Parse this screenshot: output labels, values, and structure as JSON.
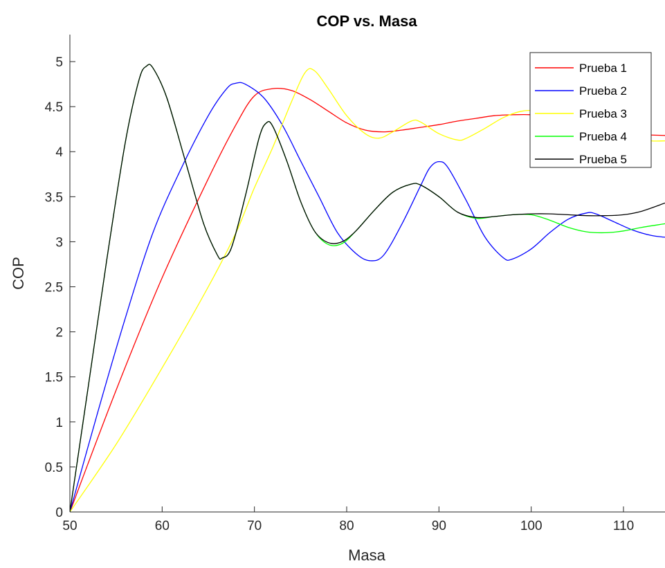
{
  "chart_data": {
    "type": "line",
    "title": "COP vs. Masa",
    "xlabel": "Masa",
    "ylabel": "COP",
    "xlim": [
      50,
      114.5
    ],
    "ylim": [
      0,
      5.3
    ],
    "xticks": [
      50,
      60,
      70,
      80,
      90,
      100,
      110
    ],
    "yticks": [
      0,
      0.5,
      1,
      1.5,
      2,
      2.5,
      3,
      3.5,
      4,
      4.5,
      5
    ],
    "xtick_labels": [
      "50",
      "60",
      "70",
      "80",
      "90",
      "100",
      "110"
    ],
    "ytick_labels": [
      "0",
      "0.5",
      "1",
      "1.5",
      "2",
      "2.5",
      "3",
      "3.5",
      "4",
      "4.5",
      "5"
    ],
    "grid": false,
    "legend_position": "top-right",
    "series": [
      {
        "name": "Prueba 1",
        "color": "#ff0000",
        "points": [
          [
            50,
            0
          ],
          [
            55,
            1.35
          ],
          [
            60,
            2.6
          ],
          [
            65,
            3.7
          ],
          [
            68,
            4.3
          ],
          [
            70,
            4.62
          ],
          [
            72,
            4.7
          ],
          [
            74,
            4.68
          ],
          [
            76,
            4.58
          ],
          [
            78,
            4.45
          ],
          [
            80,
            4.32
          ],
          [
            82,
            4.24
          ],
          [
            84,
            4.22
          ],
          [
            86,
            4.24
          ],
          [
            88,
            4.27
          ],
          [
            90,
            4.3
          ],
          [
            92,
            4.34
          ],
          [
            94,
            4.37
          ],
          [
            96,
            4.4
          ],
          [
            98,
            4.41
          ],
          [
            100,
            4.41
          ],
          [
            102,
            4.39
          ],
          [
            104,
            4.35
          ],
          [
            106,
            4.3
          ],
          [
            108,
            4.25
          ],
          [
            110,
            4.21
          ],
          [
            112,
            4.19
          ],
          [
            114.5,
            4.18
          ]
        ]
      },
      {
        "name": "Prueba 2",
        "color": "#0000ff",
        "points": [
          [
            50,
            0
          ],
          [
            53,
            1.1
          ],
          [
            56,
            2.15
          ],
          [
            59,
            3.1
          ],
          [
            62,
            3.8
          ],
          [
            65,
            4.4
          ],
          [
            67,
            4.7
          ],
          [
            68,
            4.76
          ],
          [
            69,
            4.75
          ],
          [
            71,
            4.6
          ],
          [
            73,
            4.3
          ],
          [
            75,
            3.9
          ],
          [
            77,
            3.5
          ],
          [
            79,
            3.1
          ],
          [
            81,
            2.87
          ],
          [
            82.5,
            2.79
          ],
          [
            84,
            2.85
          ],
          [
            86,
            3.2
          ],
          [
            88,
            3.62
          ],
          [
            89,
            3.82
          ],
          [
            90,
            3.89
          ],
          [
            91,
            3.82
          ],
          [
            93,
            3.45
          ],
          [
            95,
            3.05
          ],
          [
            97,
            2.82
          ],
          [
            98,
            2.81
          ],
          [
            100,
            2.92
          ],
          [
            102,
            3.1
          ],
          [
            104,
            3.25
          ],
          [
            106,
            3.32
          ],
          [
            107,
            3.31
          ],
          [
            109,
            3.22
          ],
          [
            111,
            3.13
          ],
          [
            113,
            3.07
          ],
          [
            114.5,
            3.05
          ]
        ]
      },
      {
        "name": "Prueba 3",
        "color": "#ffff00",
        "points": [
          [
            50,
            0
          ],
          [
            55,
            0.75
          ],
          [
            60,
            1.6
          ],
          [
            65,
            2.5
          ],
          [
            68,
            3.1
          ],
          [
            70,
            3.6
          ],
          [
            72,
            4.05
          ],
          [
            74,
            4.55
          ],
          [
            75.5,
            4.88
          ],
          [
            76.5,
            4.9
          ],
          [
            78,
            4.7
          ],
          [
            80,
            4.4
          ],
          [
            82,
            4.2
          ],
          [
            83.5,
            4.15
          ],
          [
            85,
            4.22
          ],
          [
            87,
            4.34
          ],
          [
            88,
            4.33
          ],
          [
            90,
            4.2
          ],
          [
            92,
            4.13
          ],
          [
            93,
            4.15
          ],
          [
            95,
            4.26
          ],
          [
            97,
            4.38
          ],
          [
            99,
            4.45
          ],
          [
            101,
            4.45
          ],
          [
            103,
            4.38
          ],
          [
            105,
            4.3
          ],
          [
            107,
            4.25
          ],
          [
            109,
            4.2
          ],
          [
            111,
            4.15
          ],
          [
            113,
            4.12
          ],
          [
            114.5,
            4.12
          ]
        ]
      },
      {
        "name": "Prueba 4",
        "color": "#00ff00",
        "points": [
          [
            50,
            0
          ],
          [
            52,
            1.4
          ],
          [
            54,
            2.8
          ],
          [
            56,
            4.1
          ],
          [
            57.5,
            4.8
          ],
          [
            58.3,
            4.95
          ],
          [
            59,
            4.93
          ],
          [
            60.5,
            4.6
          ],
          [
            62.5,
            3.9
          ],
          [
            64.5,
            3.2
          ],
          [
            66,
            2.85
          ],
          [
            66.5,
            2.82
          ],
          [
            67.5,
            2.93
          ],
          [
            69,
            3.5
          ],
          [
            70.5,
            4.15
          ],
          [
            71.3,
            4.32
          ],
          [
            72,
            4.28
          ],
          [
            73.5,
            3.9
          ],
          [
            75,
            3.45
          ],
          [
            76.5,
            3.12
          ],
          [
            78,
            2.97
          ],
          [
            79.5,
            2.98
          ],
          [
            81,
            3.12
          ],
          [
            83,
            3.35
          ],
          [
            85,
            3.55
          ],
          [
            87,
            3.64
          ],
          [
            88,
            3.63
          ],
          [
            90,
            3.5
          ],
          [
            92,
            3.33
          ],
          [
            94,
            3.26
          ],
          [
            96,
            3.28
          ],
          [
            98,
            3.3
          ],
          [
            100,
            3.3
          ],
          [
            102,
            3.24
          ],
          [
            104,
            3.16
          ],
          [
            106,
            3.11
          ],
          [
            108,
            3.1
          ],
          [
            110,
            3.12
          ],
          [
            112,
            3.16
          ],
          [
            114.5,
            3.2
          ]
        ]
      },
      {
        "name": "Prueba 5",
        "color": "#000000",
        "points": [
          [
            50,
            0
          ],
          [
            52,
            1.4
          ],
          [
            54,
            2.8
          ],
          [
            56,
            4.1
          ],
          [
            57.5,
            4.8
          ],
          [
            58.3,
            4.95
          ],
          [
            59,
            4.93
          ],
          [
            60.5,
            4.6
          ],
          [
            62.5,
            3.9
          ],
          [
            64.5,
            3.2
          ],
          [
            66,
            2.85
          ],
          [
            66.5,
            2.82
          ],
          [
            67.5,
            2.93
          ],
          [
            69,
            3.5
          ],
          [
            70.5,
            4.15
          ],
          [
            71.3,
            4.32
          ],
          [
            72,
            4.28
          ],
          [
            73.5,
            3.9
          ],
          [
            75,
            3.45
          ],
          [
            76.5,
            3.12
          ],
          [
            78,
            2.99
          ],
          [
            79.5,
            3.0
          ],
          [
            81,
            3.12
          ],
          [
            83,
            3.35
          ],
          [
            85,
            3.55
          ],
          [
            87,
            3.64
          ],
          [
            88,
            3.63
          ],
          [
            90,
            3.5
          ],
          [
            92,
            3.33
          ],
          [
            94,
            3.27
          ],
          [
            96,
            3.28
          ],
          [
            98,
            3.3
          ],
          [
            100,
            3.31
          ],
          [
            102,
            3.31
          ],
          [
            104,
            3.3
          ],
          [
            106,
            3.29
          ],
          [
            108,
            3.29
          ],
          [
            110,
            3.3
          ],
          [
            112,
            3.34
          ],
          [
            114.5,
            3.43
          ]
        ]
      }
    ]
  }
}
